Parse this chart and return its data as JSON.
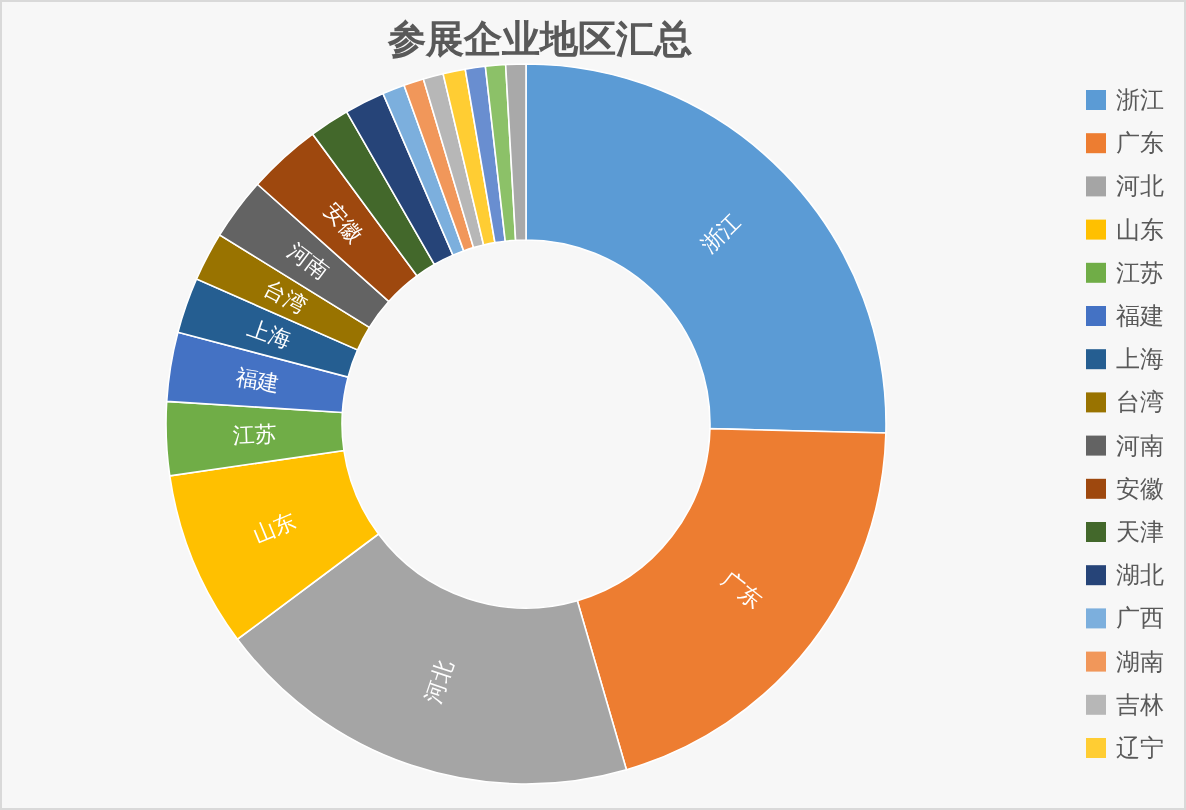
{
  "chart_data": {
    "type": "donut",
    "title": "参展企业地区汇总",
    "categories": [
      "浙江",
      "广东",
      "河北",
      "山东",
      "江苏",
      "福建",
      "上海",
      "台湾",
      "河南",
      "安徽",
      "天津",
      "湖北",
      "广西",
      "湖南",
      "吉林",
      "辽宁",
      null,
      null,
      null
    ],
    "values": [
      25.4,
      20.1,
      19.3,
      7.9,
      3.3,
      3.1,
      2.5,
      2.2,
      2.8,
      3.3,
      1.8,
      1.8,
      1.0,
      0.9,
      0.9,
      1.0,
      0.9,
      0.9,
      0.9
    ],
    "colors": [
      "#5b9bd5",
      "#ed7d31",
      "#a5a5a5",
      "#ffc000",
      "#70ad47",
      "#4472c4",
      "#255e91",
      "#997300",
      "#636363",
      "#9e480e",
      "#43682b",
      "#264478",
      "#7cafdd",
      "#f1975a",
      "#b7b7b7",
      "#ffcd33",
      "#698ed0",
      "#8cc168",
      "#a9a9a9"
    ],
    "legend": "right"
  }
}
